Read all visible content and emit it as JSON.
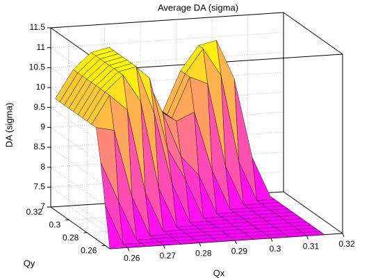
{
  "chart_data": {
    "type": "surface",
    "title": "Average DA (sigma)",
    "x_label": "Qx",
    "y_label": "Qy",
    "z_label": "DA (sigma)",
    "x": [
      0.255,
      0.26,
      0.265,
      0.27,
      0.275,
      0.28,
      0.285,
      0.29,
      0.295,
      0.3,
      0.305,
      0.31,
      0.315
    ],
    "y": [
      0.255,
      0.26,
      0.265,
      0.27,
      0.275,
      0.28,
      0.285,
      0.29,
      0.295,
      0.3,
      0.305,
      0.31,
      0.315
    ],
    "z": [
      [
        7,
        7,
        7,
        7,
        7,
        7,
        7,
        7,
        7,
        7,
        7,
        7,
        7
      ],
      [
        8,
        7,
        7,
        7,
        7,
        7,
        7,
        7,
        7,
        7,
        7,
        7,
        7
      ],
      [
        9.0,
        8,
        7,
        7,
        7,
        7,
        7,
        7,
        7,
        7,
        7,
        7,
        7
      ],
      [
        9.8,
        9.7,
        8,
        7,
        7,
        7,
        7,
        7,
        7,
        7,
        7,
        7,
        7
      ],
      [
        9.8,
        10.5,
        10.1,
        8,
        7,
        7,
        7,
        7,
        7,
        7,
        7,
        7,
        7
      ],
      [
        9.8,
        10.5,
        10.9,
        10.2,
        8,
        7,
        7,
        7,
        7,
        7,
        7,
        7,
        7
      ],
      [
        9.8,
        10.5,
        10.9,
        11.0,
        9.8,
        8,
        7,
        7,
        7,
        7,
        7,
        7,
        7
      ],
      [
        9.8,
        10.5,
        10.9,
        11.0,
        10.6,
        8.8,
        8,
        7,
        7,
        7,
        7,
        7,
        7
      ],
      [
        9.8,
        10.5,
        10.9,
        11.0,
        10.6,
        9.6,
        8.5,
        8,
        7,
        7,
        7,
        7,
        7
      ],
      [
        9.8,
        10.5,
        10.9,
        11.0,
        10.6,
        9.6,
        9.3,
        9.5,
        8,
        7,
        7,
        7,
        7
      ],
      [
        9.8,
        10.5,
        10.9,
        11.0,
        10.6,
        9.6,
        9.3,
        10.3,
        10.1,
        8,
        7,
        7,
        7
      ],
      [
        9.8,
        10.5,
        10.9,
        11.0,
        10.6,
        9.6,
        9.3,
        10.3,
        10.9,
        10.2,
        8,
        7,
        7
      ],
      [
        9.8,
        10.5,
        10.9,
        11.0,
        10.6,
        9.6,
        9.3,
        10.3,
        10.9,
        11.0,
        10.0,
        8,
        7
      ]
    ],
    "xlim": [
      0.255,
      0.32
    ],
    "xticks": [
      0.26,
      0.27,
      0.28,
      0.29,
      0.3,
      0.31,
      0.32
    ],
    "ylim": [
      0.255,
      0.32
    ],
    "yticks": [
      0.26,
      0.28,
      0.3,
      0.32
    ],
    "zlim": [
      7,
      11.5
    ],
    "zticks": [
      7,
      7.5,
      8,
      8.5,
      9,
      9.5,
      10,
      10.5,
      11,
      11.5
    ],
    "colormap": "spring",
    "grid": true
  }
}
